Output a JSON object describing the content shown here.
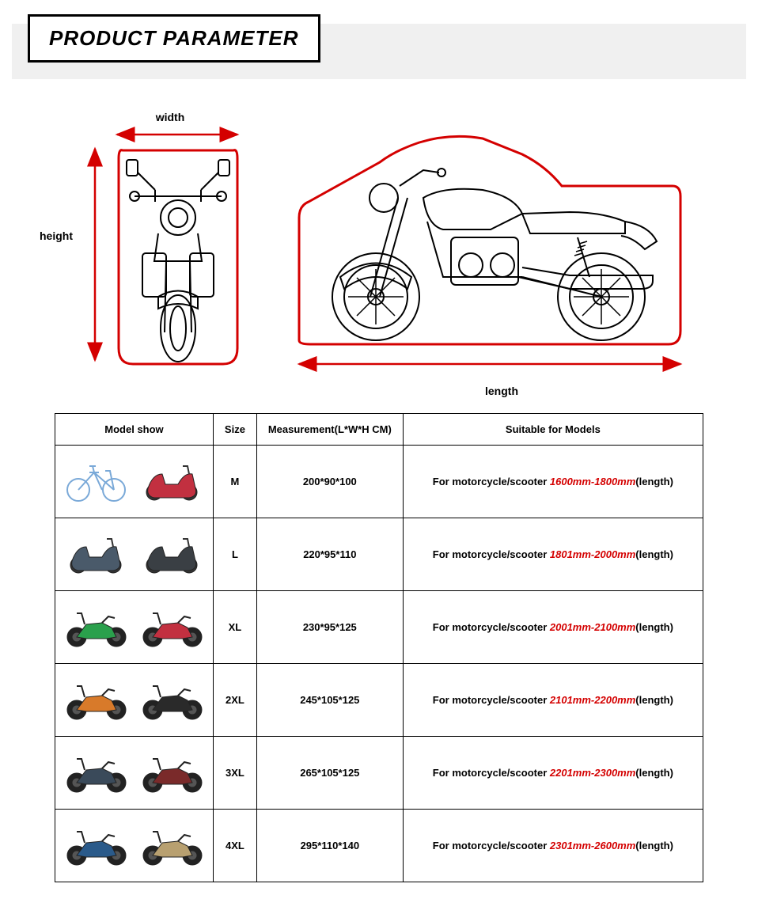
{
  "header": {
    "title": "PRODUCT PARAMETER"
  },
  "diagram": {
    "width_label": "width",
    "height_label": "height",
    "length_label": "length",
    "outline_color": "#d40000",
    "arrow_color": "#d40000",
    "moto_stroke": "#000000"
  },
  "table": {
    "columns": [
      "Model show",
      "Size",
      "Measurement(L*W*H CM)",
      "Suitable for Models"
    ],
    "suit_prefix": "For motorcycle/scooter ",
    "suit_suffix": "(length)",
    "rows": [
      {
        "size": "M",
        "measurement": "200*90*100",
        "range": "1600mm-1800mm",
        "style": "bicycle_scooter"
      },
      {
        "size": "L",
        "measurement": "220*95*110",
        "range": "1801mm-2000mm",
        "style": "small_scooter"
      },
      {
        "size": "XL",
        "measurement": "230*95*125",
        "range": "2001mm-2100mm",
        "style": "sport"
      },
      {
        "size": "2XL",
        "measurement": "245*105*125",
        "range": "2101mm-2200mm",
        "style": "dirt_naked"
      },
      {
        "size": "3XL",
        "measurement": "265*105*125",
        "range": "2201mm-2300mm",
        "style": "touring"
      },
      {
        "size": "4XL",
        "measurement": "295*110*140",
        "range": "2301mm-2600mm",
        "style": "bagger"
      }
    ],
    "thumb_colors": {
      "bicycle_scooter": [
        "#7aa9d8",
        "#c23040"
      ],
      "small_scooter": [
        "#4a5a6a",
        "#3a3f44"
      ],
      "sport": [
        "#2aa04c",
        "#c23040"
      ],
      "dirt_naked": [
        "#d87a2a",
        "#2a2a2a"
      ],
      "touring": [
        "#3a4a5a",
        "#7a2a2a"
      ],
      "bagger": [
        "#2a5a8a",
        "#b8a070"
      ]
    }
  }
}
